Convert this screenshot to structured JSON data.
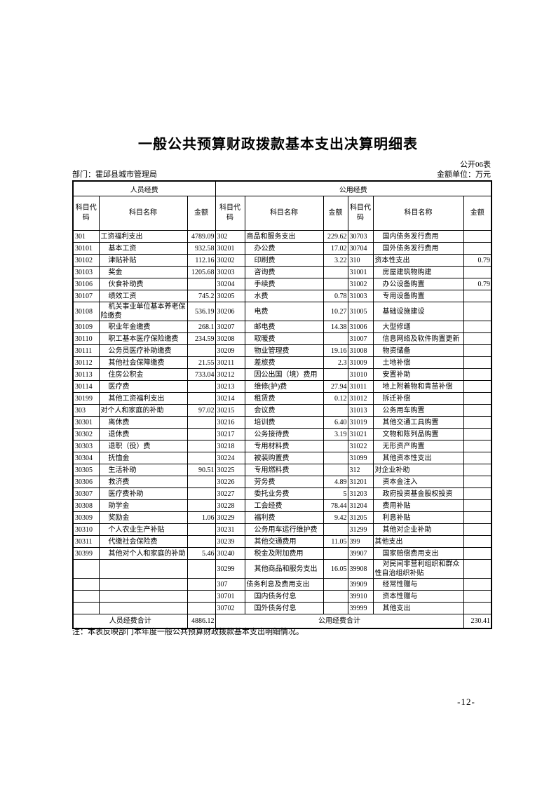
{
  "page": {
    "title": "一般公共预算财政拨款基本支出决算明细表",
    "form_label": "公开06表",
    "department_label": "部门：",
    "department": "霍邱县城市管理局",
    "unit_label": "金额单位：万元",
    "note": "注：本表反映部门本年度一般公共预算财政拨款基本支出明细情况。",
    "page_number": "-12-"
  },
  "table": {
    "group_headers": [
      "人员经费",
      "公用经费"
    ],
    "col_headers": [
      "科目代码",
      "科目名称",
      "金额"
    ],
    "rows": [
      [
        "301",
        "工资福利支出",
        "4789.09",
        "302",
        "商品和服务支出",
        "229.62",
        "30703",
        "国内债务发行费用",
        ""
      ],
      [
        "30101",
        "基本工资",
        "932.58",
        "30201",
        "办公费",
        "17.02",
        "30704",
        "国外债务发行费用",
        ""
      ],
      [
        "30102",
        "津贴补贴",
        "112.16",
        "30202",
        "印刷费",
        "3.22",
        "310",
        "资本性支出",
        "0.79"
      ],
      [
        "30103",
        "奖金",
        "1205.68",
        "30203",
        "咨询费",
        "",
        "31001",
        "房屋建筑物购建",
        ""
      ],
      [
        "30106",
        "伙食补助费",
        "",
        "30204",
        "手续费",
        "",
        "31002",
        "办公设备购置",
        "0.79"
      ],
      [
        "30107",
        "绩效工资",
        "745.2",
        "30205",
        "水费",
        "0.78",
        "31003",
        "专用设备购置",
        ""
      ],
      [
        "30108",
        "机关事业单位基本养老保险缴费",
        "536.19",
        "30206",
        "电费",
        "10.27",
        "31005",
        "基础设施建设",
        ""
      ],
      [
        "30109",
        "职业年金缴费",
        "268.1",
        "30207",
        "邮电费",
        "14.38",
        "31006",
        "大型修缮",
        ""
      ],
      [
        "30110",
        "职工基本医疗保险缴费",
        "234.59",
        "30208",
        "取暖费",
        "",
        "31007",
        "信息网络及软件购置更新",
        ""
      ],
      [
        "30111",
        "公务员医疗补助缴费",
        "",
        "30209",
        "物业管理费",
        "19.16",
        "31008",
        "物资储备",
        ""
      ],
      [
        "30112",
        "其他社会保障缴费",
        "21.55",
        "30211",
        "差旅费",
        "2.3",
        "31009",
        "土地补偿",
        ""
      ],
      [
        "30113",
        "住房公积金",
        "733.04",
        "30212",
        "因公出国（境）费用",
        "",
        "31010",
        "安置补助",
        ""
      ],
      [
        "30114",
        "医疗费",
        "",
        "30213",
        "维修(护)费",
        "27.94",
        "31011",
        "地上附着物和青苗补偿",
        ""
      ],
      [
        "30199",
        "其他工资福利支出",
        "",
        "30214",
        "租赁费",
        "0.12",
        "31012",
        "拆迁补偿",
        ""
      ],
      [
        "303",
        "对个人和家庭的补助",
        "97.02",
        "30215",
        "会议费",
        "",
        "31013",
        "公务用车购置",
        ""
      ],
      [
        "30301",
        "离休费",
        "",
        "30216",
        "培训费",
        "6.40",
        "31019",
        "其他交通工具购置",
        ""
      ],
      [
        "30302",
        "退休费",
        "",
        "30217",
        "公务接待费",
        "3.19",
        "31021",
        "文物和陈列品购置",
        ""
      ],
      [
        "30303",
        "退职（役）费",
        "",
        "30218",
        "专用材料费",
        "",
        "31022",
        "无形资产购置",
        ""
      ],
      [
        "30304",
        "抚恤金",
        "",
        "30224",
        "被装购置费",
        "",
        "31099",
        "其他资本性支出",
        ""
      ],
      [
        "30305",
        "生活补助",
        "90.51",
        "30225",
        "专用燃料费",
        "",
        "312",
        "对企业补助",
        ""
      ],
      [
        "30306",
        "救济费",
        "",
        "30226",
        "劳务费",
        "4.89",
        "31201",
        "资本金注入",
        ""
      ],
      [
        "30307",
        "医疗费补助",
        "",
        "30227",
        "委托业务费",
        "5",
        "31203",
        "政府投资基金股权投资",
        ""
      ],
      [
        "30308",
        "助学金",
        "",
        "30228",
        "工会经费",
        "78.44",
        "31204",
        "费用补贴",
        ""
      ],
      [
        "30309",
        "奖励金",
        "1.06",
        "30229",
        "福利费",
        "9.42",
        "31205",
        "利息补贴",
        ""
      ],
      [
        "30310",
        "个人农业生产补贴",
        "",
        "30231",
        "公务用车运行维护费",
        "",
        "31299",
        "其他对企业补助",
        ""
      ],
      [
        "30311",
        "代缴社会保险费",
        "",
        "30239",
        "其他交通费用",
        "11.05",
        "399",
        "其他支出",
        ""
      ],
      [
        "30399",
        "其他对个人和家庭的补助",
        "5.46",
        "30240",
        "税金及附加费用",
        "",
        "39907",
        "国家赔偿费用支出",
        ""
      ],
      [
        "",
        "",
        "",
        "30299",
        "其他商品和服务支出",
        "16.05",
        "39908",
        "对民间非营利组织和群众性自治组织补贴",
        ""
      ],
      [
        "",
        "",
        "",
        "307",
        "债务利息及费用支出",
        "",
        "39909",
        "经常性赠与",
        ""
      ],
      [
        "",
        "",
        "",
        "30701",
        "国内债务付息",
        "",
        "39910",
        "资本性赠与",
        ""
      ],
      [
        "",
        "",
        "",
        "30702",
        "国外债务付息",
        "",
        "39999",
        "其他支出",
        ""
      ]
    ],
    "footer": {
      "left_label": "人员经费合计",
      "left_total": "4886.12",
      "right_label": "公用经费合计",
      "right_total": "230.41"
    }
  }
}
